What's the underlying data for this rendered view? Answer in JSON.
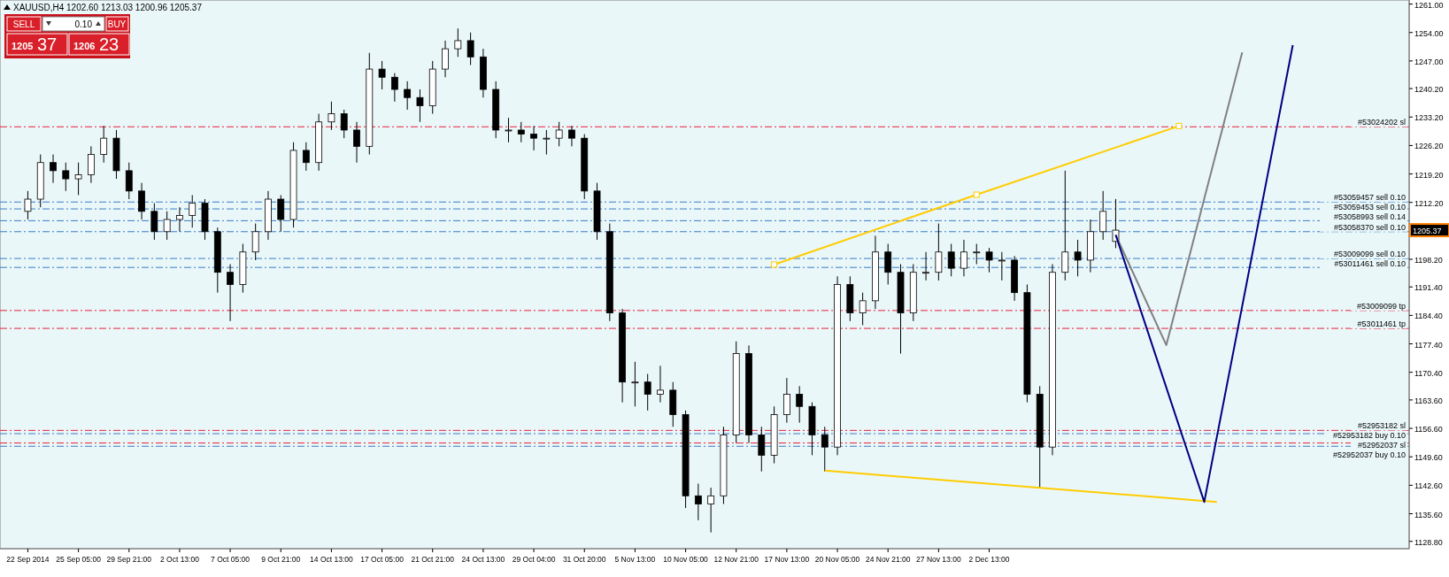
{
  "chart_data": {
    "type": "candlestick",
    "title": "XAUUSD,H4 1202.60 1213.03 1200.96 1205.37",
    "ylim": [
      1127,
      1262
    ],
    "categories": [
      "22 Sep 2014",
      null,
      null,
      null,
      "25 Sep 05:00",
      null,
      null,
      null,
      "29 Sep 21:00",
      null,
      null,
      null,
      "2 Oct 13:00",
      null,
      null,
      null,
      "7 Oct 05:00",
      null,
      null,
      null,
      "9 Oct 21:00",
      null,
      null,
      null,
      "14 Oct 13:00",
      null,
      null,
      null,
      "17 Oct 05:00",
      null,
      null,
      null,
      "21 Oct 21:00",
      null,
      null,
      null,
      "24 Oct 13:00",
      null,
      null,
      null,
      "29 Oct 04:00",
      null,
      null,
      null,
      "31 Oct 20:00",
      null,
      null,
      null,
      "5 Nov 13:00",
      null,
      null,
      null,
      "10 Nov 05:00",
      null,
      null,
      null,
      "12 Nov 21:00",
      null,
      null,
      null,
      "17 Nov 13:00",
      null,
      null,
      null,
      "20 Nov 05:00",
      null,
      null,
      null,
      "24 Nov 21:00",
      null,
      null,
      null,
      "27 Nov 13:00",
      null,
      null,
      null,
      "2 Dec 13:00",
      null,
      null,
      null,
      null,
      null,
      null,
      null,
      null,
      null,
      null,
      null,
      null,
      null,
      null,
      null,
      null,
      null,
      null,
      null,
      null,
      null,
      null,
      null,
      null,
      null,
      null,
      null,
      null,
      null,
      null,
      null
    ],
    "yticks": [
      {
        "value": 1261,
        "label": "1261.00"
      },
      {
        "value": 1254,
        "label": "1254.00"
      },
      {
        "value": 1247,
        "label": "1247.00"
      },
      {
        "value": 1240.2,
        "label": "1240.20"
      },
      {
        "value": 1233.2,
        "label": "1233.20"
      },
      {
        "value": 1226.2,
        "label": "1226.20"
      },
      {
        "value": 1219.2,
        "label": "1219.20"
      },
      {
        "value": 1212.2,
        "label": "1212.20"
      },
      {
        "value": 1205.2,
        "label": null
      },
      {
        "value": 1198.2,
        "label": "1198.20"
      },
      {
        "value": 1191.4,
        "label": "1191.40"
      },
      {
        "value": 1184.4,
        "label": "1184.40"
      },
      {
        "value": 1177.4,
        "label": "1177.40"
      },
      {
        "value": 1170.4,
        "label": "1170.40"
      },
      {
        "value": 1163.6,
        "label": "1163.60"
      },
      {
        "value": 1156.6,
        "label": "1156.60"
      },
      {
        "value": 1149.6,
        "label": "1149.60"
      },
      {
        "value": 1142.6,
        "label": "1142.60"
      },
      {
        "value": 1135.6,
        "label": "1135.60"
      },
      {
        "value": 1128.8,
        "label": "1128.80"
      }
    ],
    "color": "#000000",
    "ohlc": [
      [
        1210,
        1215,
        1208,
        1213
      ],
      [
        1213,
        1224,
        1211,
        1222
      ],
      [
        1222,
        1224,
        1217,
        1220
      ],
      [
        1220,
        1222,
        1215,
        1218
      ],
      [
        1218,
        1222,
        1214,
        1219
      ],
      [
        1219,
        1226,
        1217,
        1224
      ],
      [
        1224,
        1231,
        1222,
        1228
      ],
      [
        1228,
        1230,
        1218,
        1220
      ],
      [
        1220,
        1222,
        1213,
        1215
      ],
      [
        1215,
        1217,
        1208,
        1210
      ],
      [
        1210,
        1212,
        1203,
        1205
      ],
      [
        1205,
        1210,
        1203,
        1208
      ],
      [
        1208,
        1211,
        1205,
        1209
      ],
      [
        1209,
        1214,
        1206,
        1212
      ],
      [
        1212,
        1213,
        1203,
        1205
      ],
      [
        1205,
        1206,
        1190,
        1195
      ],
      [
        1195,
        1197,
        1183,
        1192
      ],
      [
        1192,
        1202,
        1190,
        1200
      ],
      [
        1200,
        1207,
        1198,
        1205
      ],
      [
        1205,
        1215,
        1203,
        1213
      ],
      [
        1213,
        1214,
        1205,
        1208
      ],
      [
        1208,
        1227,
        1206,
        1225
      ],
      [
        1225,
        1227,
        1220,
        1222
      ],
      [
        1222,
        1234,
        1220,
        1232
      ],
      [
        1232,
        1237,
        1230,
        1234
      ],
      [
        1234,
        1235,
        1228,
        1230
      ],
      [
        1230,
        1232,
        1222,
        1226
      ],
      [
        1226,
        1249,
        1224,
        1245
      ],
      [
        1245,
        1247,
        1240,
        1243
      ],
      [
        1243,
        1244,
        1237,
        1240
      ],
      [
        1240,
        1242,
        1235,
        1238
      ],
      [
        1238,
        1240,
        1232,
        1236
      ],
      [
        1236,
        1247,
        1234,
        1245
      ],
      [
        1245,
        1252,
        1243,
        1250
      ],
      [
        1250,
        1255,
        1248,
        1252
      ],
      [
        1252,
        1254,
        1246,
        1248
      ],
      [
        1248,
        1250,
        1238,
        1240
      ],
      [
        1240,
        1242,
        1228,
        1230
      ],
      [
        1230,
        1233,
        1227,
        1230
      ],
      [
        1230,
        1232,
        1227,
        1229
      ],
      [
        1229,
        1231,
        1225,
        1228
      ],
      [
        1228,
        1230,
        1224,
        1228
      ],
      [
        1228,
        1232,
        1226,
        1230
      ],
      [
        1230,
        1231,
        1226,
        1228
      ],
      [
        1228,
        1229,
        1213,
        1215
      ],
      [
        1215,
        1217,
        1203,
        1205
      ],
      [
        1205,
        1207,
        1183,
        1185
      ],
      [
        1185,
        1186,
        1163,
        1168
      ],
      [
        1168,
        1173,
        1162,
        1168
      ],
      [
        1168,
        1170,
        1161,
        1165
      ],
      [
        1165,
        1172,
        1163,
        1166
      ],
      [
        1166,
        1168,
        1157,
        1160
      ],
      [
        1160,
        1161,
        1137,
        1140
      ],
      [
        1140,
        1143,
        1134,
        1138
      ],
      [
        1138,
        1142,
        1131,
        1140
      ],
      [
        1140,
        1157,
        1138,
        1155
      ],
      [
        1155,
        1178,
        1153,
        1175
      ],
      [
        1175,
        1177,
        1153,
        1155
      ],
      [
        1155,
        1157,
        1146,
        1150
      ],
      [
        1150,
        1162,
        1148,
        1160
      ],
      [
        1160,
        1169,
        1158,
        1165
      ],
      [
        1165,
        1167,
        1158,
        1162
      ],
      [
        1162,
        1163,
        1150,
        1155
      ],
      [
        1155,
        1157,
        1146,
        1152
      ],
      [
        1152,
        1194,
        1150,
        1192
      ],
      [
        1192,
        1194,
        1183,
        1185
      ],
      [
        1185,
        1190,
        1182,
        1188
      ],
      [
        1188,
        1204,
        1186,
        1200
      ],
      [
        1200,
        1202,
        1192,
        1195
      ],
      [
        1195,
        1197,
        1175,
        1185
      ],
      [
        1185,
        1197,
        1183,
        1195
      ],
      [
        1195,
        1200,
        1193,
        1195
      ],
      [
        1195,
        1207,
        1193,
        1200
      ],
      [
        1200,
        1202,
        1194,
        1196
      ],
      [
        1196,
        1203,
        1194,
        1200
      ],
      [
        1200,
        1202,
        1197,
        1200
      ],
      [
        1200,
        1201,
        1195,
        1198
      ],
      [
        1198,
        1200,
        1193,
        1198
      ],
      [
        1198,
        1199,
        1188,
        1190
      ],
      [
        1190,
        1192,
        1163,
        1165
      ],
      [
        1165,
        1167,
        1142,
        1152
      ],
      [
        1152,
        1197,
        1150,
        1195
      ],
      [
        1195,
        1220,
        1193,
        1200
      ],
      [
        1200,
        1203,
        1194,
        1198
      ],
      [
        1198,
        1208,
        1195,
        1205
      ],
      [
        1205,
        1215,
        1203,
        1210
      ],
      [
        1202.6,
        1213.03,
        1200.96,
        1205.37
      ],
      null,
      null,
      null,
      null,
      null,
      null,
      null,
      null,
      null,
      null,
      null,
      null,
      null,
      null,
      null,
      null,
      null,
      null,
      null,
      null,
      null
    ],
    "series": [
      {
        "type": "line",
        "color": "#ffcc00",
        "marker": "square",
        "values": [
          null,
          null,
          null,
          null,
          null,
          null,
          null,
          null,
          null,
          null,
          null,
          null,
          null,
          null,
          null,
          null,
          null,
          null,
          null,
          null,
          null,
          null,
          null,
          null,
          null,
          null,
          null,
          null,
          null,
          null,
          null,
          null,
          null,
          null,
          null,
          null,
          null,
          null,
          null,
          null,
          null,
          null,
          null,
          null,
          null,
          null,
          null,
          null,
          null,
          null,
          null,
          null,
          null,
          null,
          null,
          null,
          null,
          null,
          null,
          1196.9,
          null,
          null,
          null,
          null,
          null,
          null,
          null,
          null,
          null,
          null,
          null,
          null,
          null,
          null,
          null,
          1214.1,
          null,
          null,
          null,
          null,
          null,
          null,
          null,
          null,
          null,
          null,
          null,
          null,
          null,
          null,
          null,
          1231,
          null,
          null,
          null,
          null,
          null,
          null,
          null,
          null,
          null,
          null,
          null,
          null,
          null,
          null,
          null,
          null
        ]
      },
      {
        "type": "line",
        "color": "#ffcc00",
        "values": [
          null,
          null,
          null,
          null,
          null,
          null,
          null,
          null,
          null,
          null,
          null,
          null,
          null,
          null,
          null,
          null,
          null,
          null,
          null,
          null,
          null,
          null,
          null,
          null,
          null,
          null,
          null,
          null,
          null,
          null,
          null,
          null,
          null,
          null,
          null,
          null,
          null,
          null,
          null,
          null,
          null,
          null,
          null,
          null,
          null,
          null,
          null,
          null,
          null,
          null,
          null,
          null,
          null,
          null,
          null,
          null,
          null,
          null,
          null,
          null,
          null,
          null,
          null,
          1146.2,
          null,
          null,
          null,
          null,
          null,
          null,
          null,
          null,
          null,
          null,
          null,
          null,
          null,
          null,
          null,
          null,
          null,
          null,
          null,
          null,
          null,
          null,
          null,
          null,
          null,
          null,
          null,
          null,
          null,
          null,
          1138.5,
          null,
          null,
          null,
          null,
          null,
          null,
          null,
          null,
          null,
          null,
          null,
          null,
          null
        ]
      },
      {
        "type": "line",
        "color": "#808080",
        "values": [
          null,
          null,
          null,
          null,
          null,
          null,
          null,
          null,
          null,
          null,
          null,
          null,
          null,
          null,
          null,
          null,
          null,
          null,
          null,
          null,
          null,
          null,
          null,
          null,
          null,
          null,
          null,
          null,
          null,
          null,
          null,
          null,
          null,
          null,
          null,
          null,
          null,
          null,
          null,
          null,
          null,
          null,
          null,
          null,
          null,
          null,
          null,
          null,
          null,
          null,
          null,
          null,
          null,
          null,
          null,
          null,
          null,
          null,
          null,
          null,
          null,
          null,
          null,
          null,
          null,
          null,
          null,
          null,
          null,
          null,
          null,
          null,
          null,
          null,
          null,
          null,
          null,
          null,
          null,
          null,
          null,
          null,
          null,
          null,
          null,
          null,
          1204.2,
          null,
          null,
          null,
          1177.1,
          null,
          null,
          null,
          null,
          null,
          1249.1,
          null,
          null,
          null,
          null,
          null,
          null,
          null,
          null,
          null,
          null,
          null
        ]
      },
      {
        "type": "line",
        "color": "#000080",
        "values": [
          null,
          null,
          null,
          null,
          null,
          null,
          null,
          null,
          null,
          null,
          null,
          null,
          null,
          null,
          null,
          null,
          null,
          null,
          null,
          null,
          null,
          null,
          null,
          null,
          null,
          null,
          null,
          null,
          null,
          null,
          null,
          null,
          null,
          null,
          null,
          null,
          null,
          null,
          null,
          null,
          null,
          null,
          null,
          null,
          null,
          null,
          null,
          null,
          null,
          null,
          null,
          null,
          null,
          null,
          null,
          null,
          null,
          null,
          null,
          null,
          null,
          null,
          null,
          null,
          null,
          null,
          null,
          null,
          null,
          null,
          null,
          null,
          null,
          null,
          null,
          null,
          null,
          null,
          null,
          null,
          null,
          null,
          null,
          null,
          null,
          null,
          1204.2,
          null,
          null,
          null,
          null,
          null,
          null,
          1138.5,
          null,
          null,
          null,
          null,
          null,
          null,
          1250.9,
          null,
          null,
          null,
          null,
          null,
          null,
          null
        ]
      }
    ],
    "ref_lines": [
      {
        "axis": "y",
        "value": 1230.8,
        "label": "#53024202 sl",
        "color": "#e8203a",
        "line_style": "dashed"
      },
      {
        "axis": "y",
        "value": 1212.3,
        "label": "#53059457 sell 0.10",
        "color": "#3a7ac8",
        "line_style": "dashed"
      },
      {
        "axis": "y",
        "value": 1210.6,
        "label": "#53059453 sell 0.10",
        "color": "#3a7ac8",
        "line_style": "dashed"
      },
      {
        "axis": "y",
        "value": 1207.7,
        "label": "#53058993 sell 0.14",
        "color": "#3a7ac8",
        "line_style": "dashed"
      },
      {
        "axis": "y",
        "value": 1205,
        "label": "#53058370 sell 0.10",
        "color": "#3a7ac8",
        "line_style": "dashed"
      },
      {
        "axis": "y",
        "value": 1198.4,
        "label": "#53009099 sell 0.10",
        "color": "#3a7ac8",
        "line_style": "dashed"
      },
      {
        "axis": "y",
        "value": 1196.2,
        "label": "#53011461 sell 0.10",
        "color": "#3a7ac8",
        "line_style": "dashed"
      },
      {
        "axis": "y",
        "value": 1185.6,
        "label": "#53009099 tp",
        "color": "#e8203a",
        "line_style": "dashed"
      },
      {
        "axis": "y",
        "value": 1181.2,
        "label": "#53011461 tp",
        "color": "#e8203a",
        "line_style": "dashed"
      },
      {
        "axis": "y",
        "value": 1156.1,
        "label": "#52953182 sl",
        "color": "#e8203a",
        "line_style": "dashed"
      },
      {
        "axis": "y",
        "value": 1155.3,
        "label": "#52953182 buy 0.10",
        "color": "#3a7ac8",
        "line_style": "dashed"
      },
      {
        "axis": "y",
        "value": 1153,
        "label": "#52952037 sl",
        "color": "#e8203a",
        "line_style": "dashed"
      },
      {
        "axis": "y",
        "value": 1152.2,
        "label": "#52952037 buy 0.10",
        "color": "#3a7ac8",
        "line_style": "dashed"
      }
    ],
    "annotations": [
      "1205.37",
      "SELL",
      "0.10",
      "BUY",
      "1205",
      "37",
      "1206",
      "23"
    ]
  }
}
